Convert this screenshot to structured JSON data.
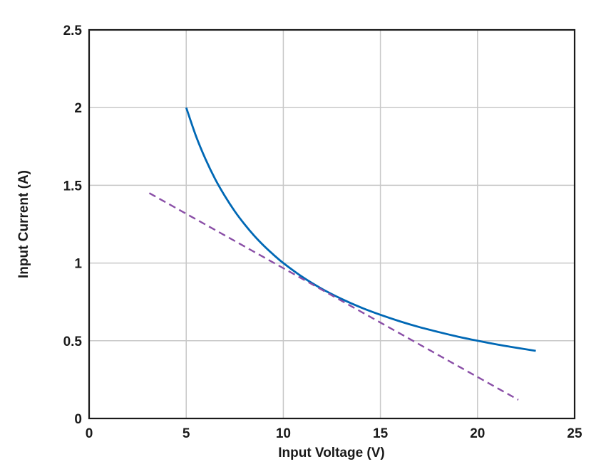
{
  "chart_data": {
    "type": "line",
    "xlabel": "Input Voltage (V)",
    "ylabel": "Input Current (A)",
    "xlim": [
      0,
      25
    ],
    "ylim": [
      0,
      2.5
    ],
    "x_ticks": [
      "0",
      "5",
      "10",
      "15",
      "20",
      "25"
    ],
    "y_ticks": [
      "0",
      "0.5",
      "1",
      "1.5",
      "2",
      "2.5"
    ],
    "grid": true,
    "series": [
      {
        "color": "#0068b5",
        "style": "solid",
        "x": [
          5,
          5.5,
          6,
          6.5,
          7,
          7.5,
          8,
          8.5,
          9,
          9.5,
          10,
          11,
          12,
          13,
          14,
          15,
          16,
          17,
          18,
          19,
          20,
          21,
          22,
          23
        ],
        "y": [
          2.0,
          1.818,
          1.667,
          1.538,
          1.429,
          1.333,
          1.25,
          1.176,
          1.111,
          1.053,
          1.0,
          0.909,
          0.833,
          0.769,
          0.714,
          0.667,
          0.625,
          0.588,
          0.556,
          0.526,
          0.5,
          0.476,
          0.455,
          0.435
        ]
      },
      {
        "color": "#8a4fa7",
        "style": "dashed",
        "x": [
          3.1,
          22.1
        ],
        "y": [
          1.45,
          0.12
        ]
      }
    ]
  }
}
